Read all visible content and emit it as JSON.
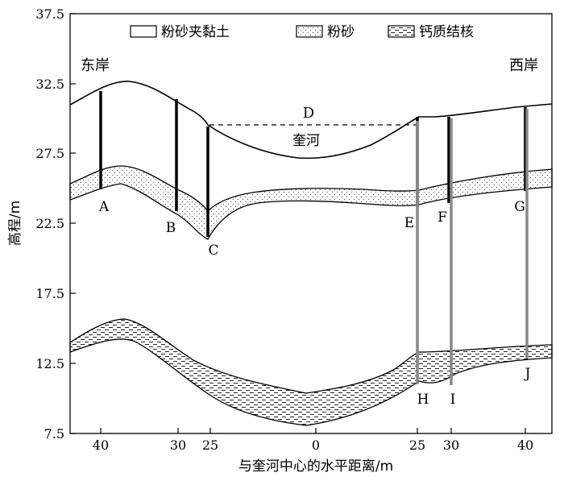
{
  "legend": {
    "clay_label": "粉砂夹黏土",
    "silt_label": "粉砂",
    "calcareous_label": "钙质结核"
  },
  "banks": {
    "east": "东岸",
    "west": "西岸"
  },
  "river": {
    "name": "奎河",
    "water_label": "D"
  },
  "axes": {
    "xlabel": "与奎河中心的水平距离/m",
    "ylabel": "高程/m",
    "xticks": [
      "40",
      "30",
      "25",
      "0",
      "25",
      "30",
      "40"
    ],
    "yticks": [
      "37.5",
      "32.5",
      "27.5",
      "22.5",
      "17.5",
      "12.5",
      "7.5"
    ]
  },
  "borehole_labels": {
    "A": "A",
    "B": "B",
    "C": "C",
    "E": "E",
    "F": "F",
    "G": "G",
    "H": "H",
    "I": "I",
    "J": "J"
  }
}
